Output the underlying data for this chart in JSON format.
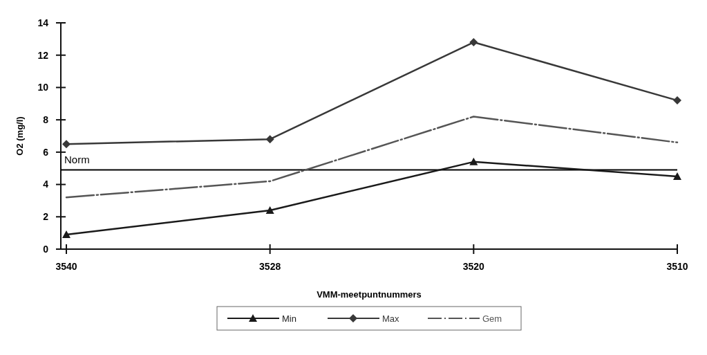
{
  "chart_data": {
    "type": "line",
    "xlabel": "VMM-meetpuntnummers",
    "ylabel": "O2 (mg/l)",
    "categories": [
      "3540",
      "3528",
      "3520",
      "3510"
    ],
    "series": [
      {
        "name": "Min",
        "color": "#1a1a1a",
        "values": [
          0.9,
          2.4,
          5.4,
          4.5
        ],
        "marker": "triangle",
        "line_style": "solid"
      },
      {
        "name": "Max",
        "color": "#383838",
        "values": [
          6.5,
          6.8,
          12.8,
          9.2
        ],
        "marker": "diamond",
        "line_style": "solid"
      },
      {
        "name": "Gem",
        "color": "#555555",
        "values": [
          3.2,
          4.2,
          8.2,
          6.6
        ],
        "marker": "none",
        "line_style": "dashed"
      }
    ],
    "ylim": [
      0,
      14
    ],
    "yticks": [
      0,
      2,
      4,
      6,
      8,
      10,
      12,
      14
    ],
    "ref_lines": [
      {
        "axis": "y",
        "value": 4.9,
        "label": "Norm",
        "color": "#000000"
      }
    ],
    "grid": false,
    "legend": "bottom"
  }
}
